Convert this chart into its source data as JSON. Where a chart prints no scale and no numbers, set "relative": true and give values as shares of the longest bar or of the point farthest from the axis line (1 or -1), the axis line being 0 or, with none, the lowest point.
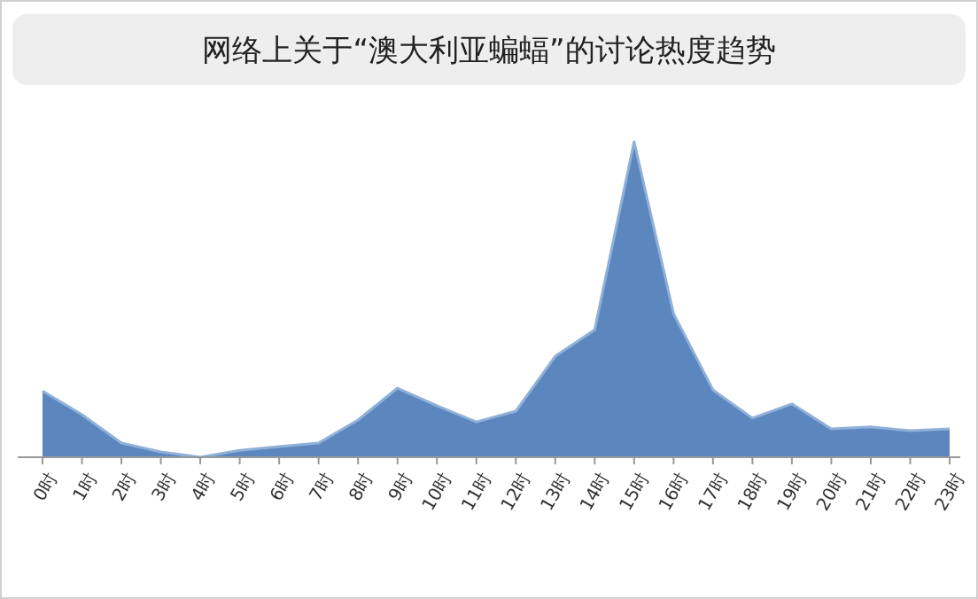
{
  "chart_data": {
    "type": "area",
    "title": "网络上关于“澳大利亚蝙蝠”的讨论热度趋势",
    "relative": true,
    "categories": [
      "0时",
      "1时",
      "2时",
      "3时",
      "4时",
      "5时",
      "6时",
      "7时",
      "8时",
      "9时",
      "10时",
      "11时",
      "12时",
      "13时",
      "14时",
      "15时",
      "16时",
      "17时",
      "18时",
      "19时",
      "20时",
      "21时",
      "22时",
      "23时"
    ],
    "series": [
      {
        "color": "#5b86be",
        "values": [
          0.21,
          0.135,
          0.045,
          0.017,
          0,
          0.022,
          0.034,
          0.045,
          0.118,
          0.219,
          0.163,
          0.112,
          0.146,
          0.32,
          0.404,
          1,
          0.455,
          0.213,
          0.124,
          0.169,
          0.09,
          0.096,
          0.084,
          0.09
        ]
      }
    ]
  }
}
